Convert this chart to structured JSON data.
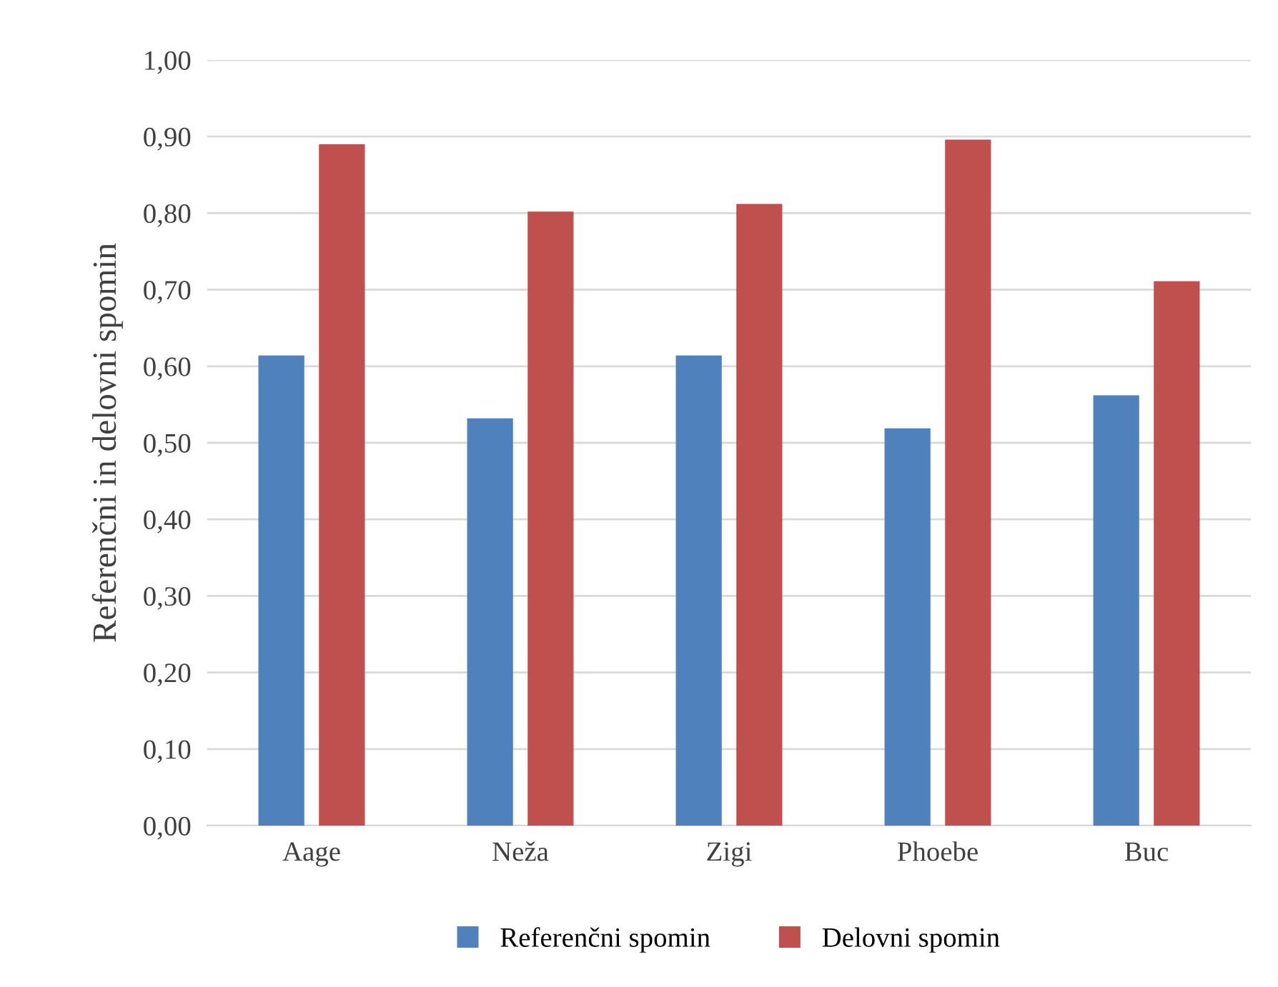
{
  "chart_data": {
    "type": "bar",
    "ylabel": "Referenčni in delovni spomin",
    "categories": [
      "Aage",
      "Neža",
      "Zigi",
      "Phoebe",
      "Buc"
    ],
    "series": [
      {
        "name": "Referenčni spomin",
        "color": "#4f81bd",
        "values": [
          0.614,
          0.532,
          0.614,
          0.519,
          0.562
        ]
      },
      {
        "name": "Delovni spomin",
        "color": "#c0504d",
        "values": [
          0.89,
          0.802,
          0.812,
          0.896,
          0.711
        ]
      }
    ],
    "ylim": [
      0,
      1
    ],
    "yticks": [
      {
        "value": 0,
        "label": "0,00"
      },
      {
        "value": 0.1,
        "label": "0,10"
      },
      {
        "value": 0.2,
        "label": "0,20"
      },
      {
        "value": 0.3,
        "label": "0,30"
      },
      {
        "value": 0.4,
        "label": "0,40"
      },
      {
        "value": 0.5,
        "label": "0,50"
      },
      {
        "value": 0.6,
        "label": "0,60"
      },
      {
        "value": 0.7,
        "label": "0,70"
      },
      {
        "value": 0.8,
        "label": "0,80"
      },
      {
        "value": 0.9,
        "label": "0,90"
      },
      {
        "value": 1,
        "label": "1,00"
      }
    ],
    "grid": "y",
    "legend": "bottom"
  }
}
